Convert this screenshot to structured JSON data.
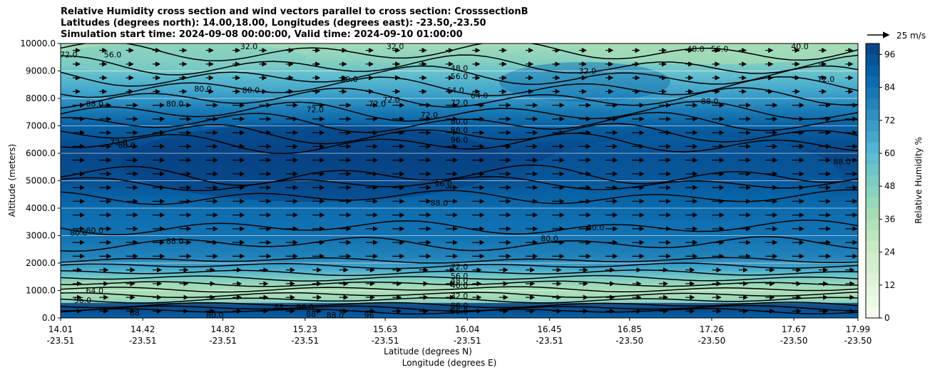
{
  "chart_data": {
    "type": "heatmap",
    "title_lines": [
      "Relative Humidity cross section and wind vectors parallel to cross section: CrosssectionB",
      "Latitudes (degrees north): 14.00,18.00, Longitudes (degrees east): -23.50,-23.50",
      "Simulation start time: 2024-09-08 00:00:00, Valid time: 2024-09-10 01:00:00"
    ],
    "ylabel": "Altitude (meters)",
    "xlabel_lat": "Latitude (degrees N)",
    "xlabel_lon": "Longitude (degrees E)",
    "ylim": [
      0,
      10000
    ],
    "y_ticks": [
      {
        "value": 0,
        "label": "0.0"
      },
      {
        "value": 1000,
        "label": "1000.0"
      },
      {
        "value": 2000,
        "label": "2000.0"
      },
      {
        "value": 3000,
        "label": "3000.0"
      },
      {
        "value": 4000,
        "label": "4000.0"
      },
      {
        "value": 5000,
        "label": "5000.0"
      },
      {
        "value": 6000,
        "label": "6000.0"
      },
      {
        "value": 7000,
        "label": "7000.0"
      },
      {
        "value": 8000,
        "label": "8000.0"
      },
      {
        "value": 9000,
        "label": "9000.0"
      },
      {
        "value": 10000,
        "label": "10000.0"
      }
    ],
    "x_ticks": [
      {
        "lat": "14.01",
        "lon": "-23.51",
        "value": 14.01
      },
      {
        "lat": "14.42",
        "lon": "-23.51",
        "value": 14.42
      },
      {
        "lat": "14.82",
        "lon": "-23.51",
        "value": 14.82
      },
      {
        "lat": "15.23",
        "lon": "-23.51",
        "value": 15.23
      },
      {
        "lat": "15.63",
        "lon": "-23.51",
        "value": 15.63
      },
      {
        "lat": "16.04",
        "lon": "-23.51",
        "value": 16.04
      },
      {
        "lat": "16.45",
        "lon": "-23.51",
        "value": 16.45
      },
      {
        "lat": "16.85",
        "lon": "-23.50",
        "value": 16.85
      },
      {
        "lat": "17.26",
        "lon": "-23.50",
        "value": 17.26
      },
      {
        "lat": "17.67",
        "lon": "-23.50",
        "value": 17.67
      },
      {
        "lat": "17.99",
        "lon": "-23.50",
        "value": 17.99
      }
    ],
    "xlim": [
      14.01,
      17.99
    ],
    "colorbar": {
      "label": "Relative Humidity %",
      "range": [
        0,
        100
      ],
      "ticks": [
        0,
        12,
        24,
        36,
        48,
        60,
        72,
        84,
        96
      ],
      "colormap": "GnBu"
    },
    "quiver_key": {
      "label": "25 m/s"
    },
    "colormap_stops": [
      "#f7fcf0",
      "#e0f3db",
      "#ccebc5",
      "#a8ddb5",
      "#7bccc4",
      "#4eb3d3",
      "#2b8cbe",
      "#0868ac",
      "#084081"
    ],
    "humidity_profile": [
      {
        "alt": 0,
        "rh": 90
      },
      {
        "alt": 300,
        "rh": 96
      },
      {
        "alt": 600,
        "rh": 44
      },
      {
        "alt": 900,
        "rh": 36
      },
      {
        "alt": 1200,
        "rh": 40
      },
      {
        "alt": 1500,
        "rh": 52
      },
      {
        "alt": 1800,
        "rh": 66
      },
      {
        "alt": 2200,
        "rh": 78
      },
      {
        "alt": 3000,
        "rh": 84
      },
      {
        "alt": 4000,
        "rh": 86
      },
      {
        "alt": 4500,
        "rh": 90
      },
      {
        "alt": 5000,
        "rh": 95
      },
      {
        "alt": 6000,
        "rh": 98
      },
      {
        "alt": 7000,
        "rh": 90
      },
      {
        "alt": 7600,
        "rh": 80
      },
      {
        "alt": 8200,
        "rh": 68
      },
      {
        "alt": 8800,
        "rh": 58
      },
      {
        "alt": 9400,
        "rh": 46
      },
      {
        "alt": 10000,
        "rh": 38
      }
    ],
    "contour_labels": [
      {
        "text": "72.0",
        "lat": 14.05,
        "alt": 9600
      },
      {
        "text": "56.0",
        "lat": 14.27,
        "alt": 9600
      },
      {
        "text": "32.0",
        "lat": 14.95,
        "alt": 9900
      },
      {
        "text": "32.0",
        "lat": 15.68,
        "alt": 9900
      },
      {
        "text": "48.0",
        "lat": 16.0,
        "alt": 9100
      },
      {
        "text": "56.0",
        "lat": 16.0,
        "alt": 8800
      },
      {
        "text": "64.0",
        "lat": 15.98,
        "alt": 8300
      },
      {
        "text": "64.0",
        "lat": 16.1,
        "alt": 8100
      },
      {
        "text": "72.0",
        "lat": 16.0,
        "alt": 7850
      },
      {
        "text": "80.0",
        "lat": 16.0,
        "alt": 7150
      },
      {
        "text": "88.0",
        "lat": 16.0,
        "alt": 6850
      },
      {
        "text": "96.0",
        "lat": 16.0,
        "alt": 6500
      },
      {
        "text": "96.0",
        "lat": 15.92,
        "alt": 4900
      },
      {
        "text": "88.0",
        "lat": 15.9,
        "alt": 4200
      },
      {
        "text": "80.0",
        "lat": 14.58,
        "alt": 7800
      },
      {
        "text": "88.0",
        "lat": 14.18,
        "alt": 7800
      },
      {
        "text": "72.0",
        "lat": 14.3,
        "alt": 6400
      },
      {
        "text": "80.0",
        "lat": 14.34,
        "alt": 6300
      },
      {
        "text": "80.0",
        "lat": 14.72,
        "alt": 8350
      },
      {
        "text": "80.0",
        "lat": 14.96,
        "alt": 8300
      },
      {
        "text": "80.0",
        "lat": 15.45,
        "alt": 8700
      },
      {
        "text": "72.0",
        "lat": 15.28,
        "alt": 7600
      },
      {
        "text": "72.0",
        "lat": 15.59,
        "alt": 7800
      },
      {
        "text": "72.0",
        "lat": 15.66,
        "alt": 7950
      },
      {
        "text": "72.0",
        "lat": 15.85,
        "alt": 7400
      },
      {
        "text": "32.0",
        "lat": 16.64,
        "alt": 9000
      },
      {
        "text": "88.0",
        "lat": 17.25,
        "alt": 7900
      },
      {
        "text": "72.0",
        "lat": 17.83,
        "alt": 8700
      },
      {
        "text": "88.0",
        "lat": 17.91,
        "alt": 5700
      },
      {
        "text": "48.0",
        "lat": 17.18,
        "alt": 9800
      },
      {
        "text": "56.0",
        "lat": 17.3,
        "alt": 9800
      },
      {
        "text": "40.0",
        "lat": 17.7,
        "alt": 9900
      },
      {
        "text": "80.0",
        "lat": 14.1,
        "alt": 3100
      },
      {
        "text": "80.0",
        "lat": 14.18,
        "alt": 3200
      },
      {
        "text": "88.0",
        "lat": 14.58,
        "alt": 2800
      },
      {
        "text": "80.0",
        "lat": 16.45,
        "alt": 2900
      },
      {
        "text": "80.0",
        "lat": 16.68,
        "alt": 3300
      },
      {
        "text": "72.0",
        "lat": 16.0,
        "alt": 1870
      },
      {
        "text": "56.0",
        "lat": 16.0,
        "alt": 1530
      },
      {
        "text": "48.0",
        "lat": 16.0,
        "alt": 1360
      },
      {
        "text": "40.0",
        "lat": 16.0,
        "alt": 1200
      },
      {
        "text": "32.0",
        "lat": 16.0,
        "alt": 800
      },
      {
        "text": "88.0",
        "lat": 16.0,
        "alt": 450
      },
      {
        "text": "96.0",
        "lat": 16.0,
        "alt": 250
      },
      {
        "text": "64.0",
        "lat": 14.18,
        "alt": 1000
      },
      {
        "text": "56.0",
        "lat": 14.12,
        "alt": 650
      },
      {
        "text": "88",
        "lat": 14.38,
        "alt": 200
      },
      {
        "text": "80.0",
        "lat": 14.78,
        "alt": 100
      },
      {
        "text": "88",
        "lat": 15.1,
        "alt": 400
      },
      {
        "text": "96.0",
        "lat": 15.23,
        "alt": 400
      },
      {
        "text": "88",
        "lat": 15.26,
        "alt": 150
      },
      {
        "text": "88.0",
        "lat": 15.38,
        "alt": 100
      },
      {
        "text": "96",
        "lat": 15.55,
        "alt": 100
      }
    ]
  }
}
